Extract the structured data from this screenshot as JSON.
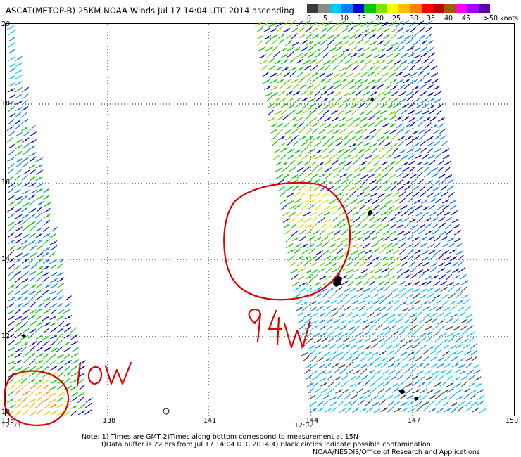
{
  "header": {
    "title": "ASCAT(METOP-B) 25KM NOAA Winds Jul 17 14:04 UTC 2014 ascending"
  },
  "legend": {
    "labels": [
      "0",
      "5",
      "10",
      "15",
      "20",
      "25",
      "30",
      "35",
      "40",
      "45",
      ">50 knots"
    ],
    "colors": [
      "#3a3a3a",
      "#8a8a8a",
      "#00c8ff",
      "#0080ff",
      "#0000d0",
      "#00c800",
      "#80e000",
      "#ffff00",
      "#ffc000",
      "#ff8000",
      "#ff0000",
      "#c00000",
      "#a05a00",
      "#ff00ff",
      "#a000ff",
      "#6000a0"
    ]
  },
  "map": {
    "lat_ticks": [
      "20",
      "18",
      "16",
      "14",
      "12",
      "10"
    ],
    "lon_ticks": [
      "135",
      "138",
      "141",
      "144",
      "147",
      "150"
    ],
    "pass_times": [
      "12:03",
      "12:02"
    ],
    "annotations": {
      "circle_94w_label": "94W",
      "circle_low_label": "low"
    }
  },
  "footer": {
    "note_line1": "Note: 1) Times are GMT 2)Times along bottom correspond to measurement at 15N",
    "note_line2": "3)Data buffer is 22 hrs from Jul 17 14:04 UTC 2014 4) Black circles indicate possible contamination",
    "credit": "NOAA/NESDIS/Office of Research and Applications"
  }
}
